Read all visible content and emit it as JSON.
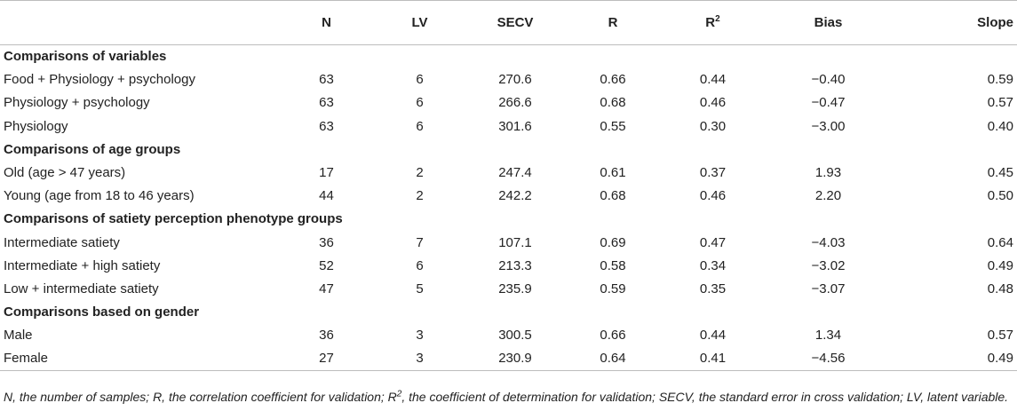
{
  "header": {
    "col0": "",
    "n": "N",
    "lv": "LV",
    "secv": "SECV",
    "r": "R",
    "r2_base": "R",
    "r2_sup": "2",
    "bias": "Bias",
    "slope": "Slope"
  },
  "groups": [
    {
      "title": "Comparisons of variables",
      "rows": [
        {
          "label": "Food + Physiology + psychology",
          "n": "63",
          "lv": "6",
          "secv": "270.6",
          "r": "0.66",
          "r2": "0.44",
          "bias": "−0.40",
          "slope": "0.59"
        },
        {
          "label": "Physiology + psychology",
          "n": "63",
          "lv": "6",
          "secv": "266.6",
          "r": "0.68",
          "r2": "0.46",
          "bias": "−0.47",
          "slope": "0.57"
        },
        {
          "label": "Physiology",
          "n": "63",
          "lv": "6",
          "secv": "301.6",
          "r": "0.55",
          "r2": "0.30",
          "bias": "−3.00",
          "slope": "0.40"
        }
      ]
    },
    {
      "title": "Comparisons of age groups",
      "rows": [
        {
          "label": "Old (age > 47 years)",
          "n": "17",
          "lv": "2",
          "secv": "247.4",
          "r": "0.61",
          "r2": "0.37",
          "bias": "1.93",
          "slope": "0.45"
        },
        {
          "label": "Young (age from 18 to 46 years)",
          "n": "44",
          "lv": "2",
          "secv": "242.2",
          "r": "0.68",
          "r2": "0.46",
          "bias": "2.20",
          "slope": "0.50"
        }
      ]
    },
    {
      "title": "Comparisons of satiety perception phenotype groups",
      "rows": [
        {
          "label": "Intermediate satiety",
          "n": "36",
          "lv": "7",
          "secv": "107.1",
          "r": "0.69",
          "r2": "0.47",
          "bias": "−4.03",
          "slope": "0.64"
        },
        {
          "label": "Intermediate + high satiety",
          "n": "52",
          "lv": "6",
          "secv": "213.3",
          "r": "0.58",
          "r2": "0.34",
          "bias": "−3.02",
          "slope": "0.49"
        },
        {
          "label": "Low + intermediate satiety",
          "n": "47",
          "lv": "5",
          "secv": "235.9",
          "r": "0.59",
          "r2": "0.35",
          "bias": "−3.07",
          "slope": "0.48"
        }
      ]
    },
    {
      "title": "Comparisons based on gender",
      "rows": [
        {
          "label": "Male",
          "n": "36",
          "lv": "3",
          "secv": "300.5",
          "r": "0.66",
          "r2": "0.44",
          "bias": "1.34",
          "slope": "0.57"
        },
        {
          "label": "Female",
          "n": "27",
          "lv": "3",
          "secv": "230.9",
          "r": "0.64",
          "r2": "0.41",
          "bias": "−4.56",
          "slope": "0.49"
        }
      ]
    }
  ],
  "footnote": {
    "part1": "N, the number of samples; R, the correlation coefficient for validation; R",
    "sup": "2",
    "part2": ", the coefficient of determination for validation; SECV, the standard error in cross validation; LV, latent variable."
  }
}
